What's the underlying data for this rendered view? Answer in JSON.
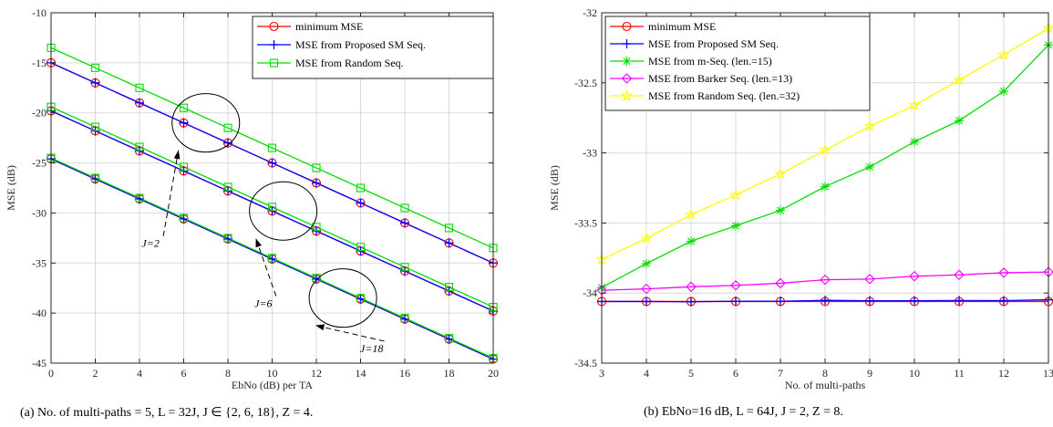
{
  "captions": {
    "left": "(a) No. of multi-paths = 5, L = 32J, J ∈ {2, 6, 18}, Z = 4.",
    "right": "(b) EbNo=16 dB, L = 64J, J = 2, Z = 8."
  },
  "colors": {
    "red": "#ff0000",
    "blue": "#0000ff",
    "green": "#00dd00",
    "magenta": "#ff00ff",
    "yellow": "#ffff00"
  },
  "chart_data": [
    {
      "type": "line",
      "xlabel": "EbNo (dB) per TA",
      "ylabel": "MSE (dB)",
      "xlim": [
        0,
        20
      ],
      "ylim": [
        -45,
        -10
      ],
      "xticks": [
        0,
        2,
        4,
        6,
        8,
        10,
        12,
        14,
        16,
        18,
        20
      ],
      "yticks": [
        -10,
        -15,
        -20,
        -25,
        -30,
        -35,
        -40,
        -45
      ],
      "grid": true,
      "legend_position": "top-right",
      "legend": [
        "minimum MSE",
        "MSE from Proposed SM Seq.",
        "MSE from Random Seq."
      ],
      "x": [
        0,
        2,
        4,
        6,
        8,
        10,
        12,
        14,
        16,
        18,
        20
      ],
      "series": [
        {
          "name": "minimum MSE",
          "group": "J=2",
          "color": "red",
          "marker": "circle",
          "values": [
            -15,
            -17,
            -19,
            -21,
            -23,
            -25,
            -27,
            -29,
            -31,
            -33,
            -35
          ]
        },
        {
          "name": "MSE from Proposed SM Seq.",
          "group": "J=2",
          "color": "blue",
          "marker": "plus",
          "values": [
            -15,
            -17,
            -19,
            -21,
            -23,
            -25,
            -27,
            -29,
            -31,
            -33,
            -35
          ]
        },
        {
          "name": "MSE from Random Seq.",
          "group": "J=2",
          "color": "green",
          "marker": "square",
          "values": [
            -13.5,
            -15.5,
            -17.5,
            -19.5,
            -21.5,
            -23.5,
            -25.5,
            -27.5,
            -29.5,
            -31.5,
            -33.5
          ]
        },
        {
          "name": "minimum MSE",
          "group": "J=6",
          "color": "red",
          "marker": "circle",
          "values": [
            -19.8,
            -21.8,
            -23.8,
            -25.8,
            -27.8,
            -29.8,
            -31.8,
            -33.8,
            -35.8,
            -37.8,
            -39.8
          ]
        },
        {
          "name": "MSE from Proposed SM Seq.",
          "group": "J=6",
          "color": "blue",
          "marker": "plus",
          "values": [
            -19.8,
            -21.8,
            -23.8,
            -25.8,
            -27.8,
            -29.8,
            -31.8,
            -33.8,
            -35.8,
            -37.8,
            -39.8
          ]
        },
        {
          "name": "MSE from Random Seq.",
          "group": "J=6",
          "color": "green",
          "marker": "square",
          "values": [
            -19.4,
            -21.4,
            -23.4,
            -25.4,
            -27.4,
            -29.4,
            -31.4,
            -33.4,
            -35.4,
            -37.4,
            -39.4
          ]
        },
        {
          "name": "minimum MSE",
          "group": "J=18",
          "color": "red",
          "marker": "circle",
          "values": [
            -24.6,
            -26.6,
            -28.6,
            -30.6,
            -32.6,
            -34.6,
            -36.6,
            -38.6,
            -40.6,
            -42.6,
            -44.6
          ]
        },
        {
          "name": "MSE from Proposed SM Seq.",
          "group": "J=18",
          "color": "blue",
          "marker": "plus",
          "values": [
            -24.6,
            -26.6,
            -28.6,
            -30.6,
            -32.6,
            -34.6,
            -36.6,
            -38.6,
            -40.6,
            -42.6,
            -44.6
          ]
        },
        {
          "name": "MSE from Random Seq.",
          "group": "J=18",
          "color": "green",
          "marker": "square",
          "values": [
            -24.5,
            -26.5,
            -28.5,
            -30.5,
            -32.5,
            -34.5,
            -36.5,
            -38.5,
            -40.5,
            -42.5,
            -44.5
          ]
        }
      ],
      "annotations": [
        {
          "text": "J=2",
          "ellipse_center": [
            7,
            -21
          ],
          "label_at": [
            4.5,
            -33.4
          ]
        },
        {
          "text": "J=6",
          "ellipse_center": [
            10.5,
            -29.8
          ],
          "label_at": [
            9.6,
            -39.4
          ]
        },
        {
          "text": "J=18",
          "ellipse_center": [
            13.2,
            -38.5
          ],
          "label_at": [
            14.5,
            -43.9
          ]
        }
      ]
    },
    {
      "type": "line",
      "xlabel": "No. of multi-paths",
      "ylabel": "MSE (dB)",
      "xlim": [
        3,
        13
      ],
      "ylim": [
        -34.5,
        -32
      ],
      "xticks": [
        3,
        4,
        5,
        6,
        7,
        8,
        9,
        10,
        11,
        12,
        13
      ],
      "yticks": [
        -32,
        -32.5,
        -33,
        -33.5,
        -34,
        -34.5
      ],
      "grid": true,
      "legend_position": "top-left",
      "x": [
        3,
        4,
        5,
        6,
        7,
        8,
        9,
        10,
        11,
        12,
        13
      ],
      "series": [
        {
          "name": "minimum MSE",
          "color": "red",
          "marker": "circle",
          "values": [
            -34.06,
            -34.06,
            -34.06,
            -34.06,
            -34.06,
            -34.06,
            -34.06,
            -34.06,
            -34.06,
            -34.06,
            -34.06
          ]
        },
        {
          "name": "MSE from Proposed SM Seq.",
          "color": "blue",
          "marker": "plus",
          "values": [
            -34.06,
            -34.06,
            -34.062,
            -34.058,
            -34.058,
            -34.052,
            -34.055,
            -34.055,
            -34.053,
            -34.054,
            -34.048
          ]
        },
        {
          "name": "MSE from m-Seq. (len.=15)",
          "color": "green",
          "marker": "asterisk",
          "values": [
            -33.96,
            -33.79,
            -33.63,
            -33.52,
            -33.41,
            -33.24,
            -33.1,
            -32.92,
            -32.77,
            -32.56,
            -32.23
          ]
        },
        {
          "name": "MSE from Barker Seq. (len.=13)",
          "color": "magenta",
          "marker": "diamond",
          "values": [
            -33.98,
            -33.97,
            -33.955,
            -33.945,
            -33.93,
            -33.905,
            -33.9,
            -33.88,
            -33.87,
            -33.855,
            -33.85
          ]
        },
        {
          "name": "MSE from Random Seq. (len.=32)",
          "color": "yellow",
          "marker": "star",
          "values": [
            -33.76,
            -33.61,
            -33.44,
            -33.3,
            -33.15,
            -32.98,
            -32.81,
            -32.66,
            -32.48,
            -32.3,
            -32.11
          ]
        }
      ]
    }
  ]
}
